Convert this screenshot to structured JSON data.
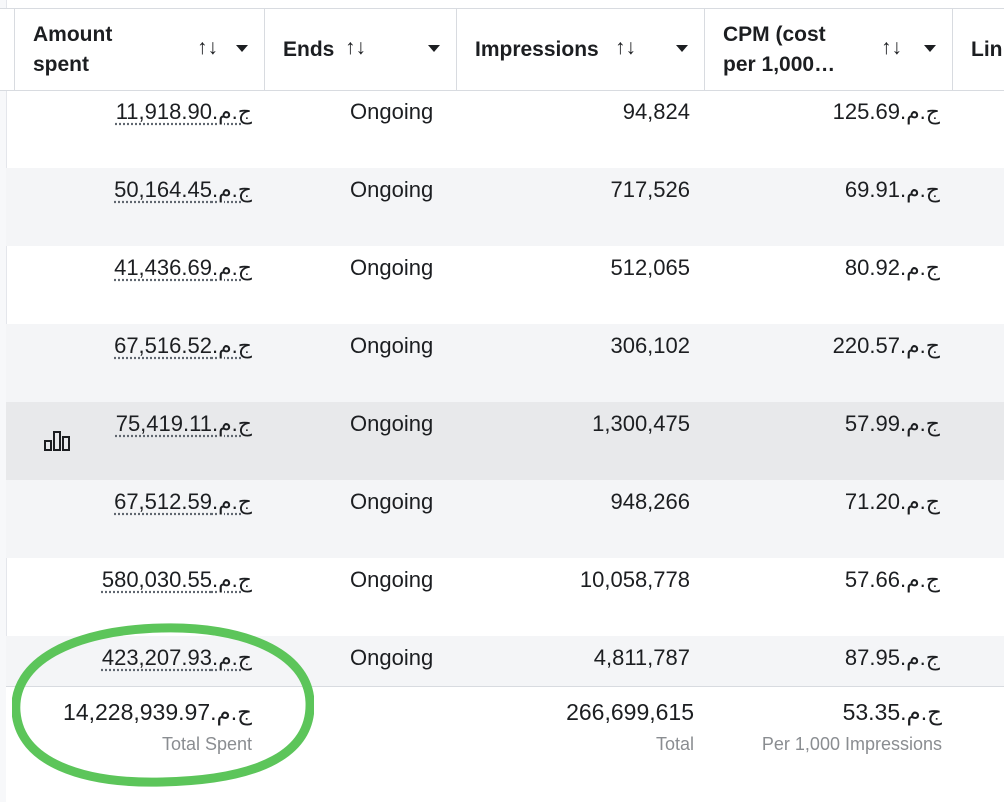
{
  "header": {
    "amount_spent_line1": "Amount",
    "amount_spent_line2": "spent",
    "ends": "Ends",
    "impressions": "Impressions",
    "cpm_line1": "CPM (cost",
    "cpm_line2": "per 1,000…",
    "next_col": "Lin",
    "sort_glyph": "↑↓"
  },
  "rows": [
    {
      "amount": "ج.م.11,918.90",
      "ends": "Ongoing",
      "impressions": "94,824",
      "cpm": "ج.م.125.69"
    },
    {
      "amount": "ج.م.50,164.45",
      "ends": "Ongoing",
      "impressions": "717,526",
      "cpm": "ج.م.69.91"
    },
    {
      "amount": "ج.م.41,436.69",
      "ends": "Ongoing",
      "impressions": "512,065",
      "cpm": "ج.م.80.92"
    },
    {
      "amount": "ج.م.67,516.52",
      "ends": "Ongoing",
      "impressions": "306,102",
      "cpm": "ج.م.220.57"
    },
    {
      "amount": "ج.م.75,419.11",
      "ends": "Ongoing",
      "impressions": "1,300,475",
      "cpm": "ج.م.57.99"
    },
    {
      "amount": "ج.م.67,512.59",
      "ends": "Ongoing",
      "impressions": "948,266",
      "cpm": "ج.م.71.20"
    },
    {
      "amount": "ج.م.580,030.55",
      "ends": "Ongoing",
      "impressions": "10,058,778",
      "cpm": "ج.م.57.66"
    },
    {
      "amount": "ج.م.423,207.93",
      "ends": "Ongoing",
      "impressions": "4,811,787",
      "cpm": "ج.م.87.95"
    }
  ],
  "footer": {
    "total_spent_value": "ج.م.14,228,939.97",
    "total_spent_label": "Total Spent",
    "impressions_total_value": "266,699,615",
    "impressions_total_label": "Total",
    "cpm_value": "ج.م.53.35",
    "cpm_label": "Per 1,000 Impressions"
  },
  "colors": {
    "highlight_circle": "#5cc55a",
    "row_alt": "#f4f5f7",
    "row_hover": "#e8e9eb",
    "muted_text": "#8a8d91"
  },
  "icons": {
    "row_chart_icon": "bar-chart-icon"
  }
}
